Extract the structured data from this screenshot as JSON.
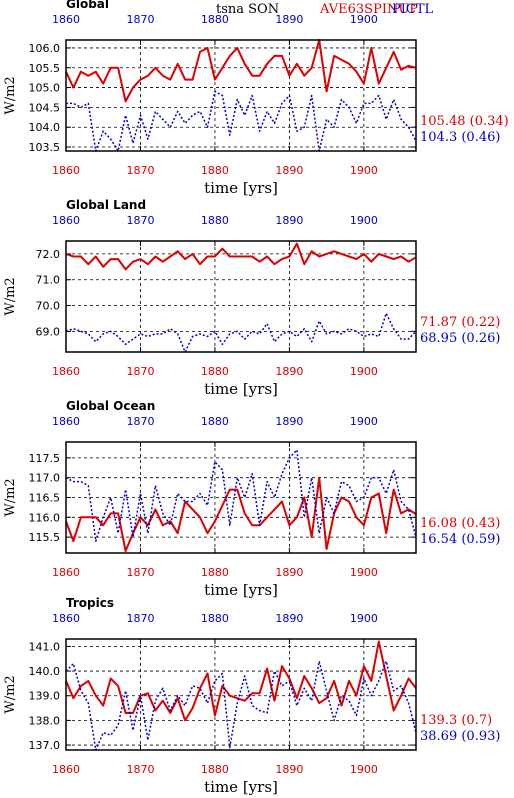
{
  "header": {
    "variable": "tsna SON",
    "run_a": "AVE63SPINUP",
    "run_b": "PICTL",
    "color_a": "#dd0000",
    "color_b": "#0000cc"
  },
  "chart_data": [
    {
      "type": "line",
      "title": "Global",
      "xlabel": "time [yrs]",
      "ylabel": "W/m2",
      "xlim": [
        1860,
        1907
      ],
      "ylim": [
        103.4,
        106.2
      ],
      "xticks": [
        1860,
        1870,
        1880,
        1890,
        1900
      ],
      "yticks": [
        "103.5",
        "104.0",
        "104.5",
        "105.0",
        "105.5",
        "106.0"
      ],
      "x_start": 1860,
      "series": [
        {
          "name": "AVE63SPINUP",
          "color": "#dd0000",
          "dash": "solid",
          "label": "105.48 (0.34)",
          "values": [
            105.4,
            105.0,
            105.4,
            105.3,
            105.4,
            105.1,
            105.5,
            105.5,
            104.65,
            105.0,
            105.2,
            105.3,
            105.5,
            105.3,
            105.2,
            105.6,
            105.2,
            105.2,
            105.9,
            106.0,
            105.2,
            105.5,
            105.8,
            106.0,
            105.6,
            105.3,
            105.3,
            105.6,
            105.8,
            105.8,
            105.3,
            105.6,
            105.3,
            105.5,
            106.2,
            104.9,
            105.8,
            105.7,
            105.6,
            105.4,
            105.1,
            106.0,
            105.1,
            105.5,
            105.9,
            105.45,
            105.55,
            105.5
          ]
        },
        {
          "name": "PICTL",
          "color": "#0000cc",
          "dash": "dotted",
          "label": "104.3 (0.46)",
          "values": [
            104.6,
            104.6,
            104.5,
            104.6,
            103.4,
            103.9,
            103.7,
            103.4,
            104.3,
            103.6,
            104.3,
            103.7,
            104.4,
            104.2,
            104.0,
            104.4,
            104.1,
            104.3,
            104.4,
            104.0,
            104.9,
            104.8,
            103.8,
            104.7,
            104.3,
            104.8,
            103.9,
            104.4,
            104.1,
            104.6,
            104.8,
            103.9,
            104.0,
            104.8,
            103.4,
            104.2,
            104.0,
            104.7,
            104.5,
            104.1,
            104.6,
            104.6,
            104.8,
            104.2,
            104.7,
            104.2,
            104.0,
            103.65
          ]
        }
      ]
    },
    {
      "type": "line",
      "title": "Global Land",
      "xlabel": "time [yrs]",
      "ylabel": "W/m2",
      "xlim": [
        1860,
        1907
      ],
      "ylim": [
        68.2,
        72.5
      ],
      "xticks": [
        1860,
        1870,
        1880,
        1890,
        1900
      ],
      "yticks": [
        "69.0",
        "70.0",
        "71.0",
        "72.0"
      ],
      "x_start": 1860,
      "series": [
        {
          "name": "AVE63SPINUP",
          "color": "#dd0000",
          "dash": "solid",
          "label": "71.87 (0.22)",
          "values": [
            72.0,
            71.9,
            71.9,
            71.6,
            71.9,
            71.5,
            71.8,
            71.8,
            71.4,
            71.7,
            71.8,
            71.6,
            71.9,
            71.7,
            71.9,
            72.1,
            71.8,
            72.0,
            71.6,
            71.9,
            71.9,
            72.2,
            71.9,
            71.9,
            71.9,
            71.9,
            71.7,
            71.9,
            71.6,
            71.8,
            71.9,
            72.4,
            71.6,
            72.1,
            71.9,
            72.0,
            72.1,
            72.0,
            71.9,
            71.8,
            72.0,
            71.7,
            72.0,
            71.9,
            71.8,
            71.9,
            71.7,
            71.87
          ]
        },
        {
          "name": "PICTL",
          "color": "#0000cc",
          "dash": "dotted",
          "label": "68.95 (0.26)",
          "values": [
            69.0,
            69.1,
            69.0,
            68.9,
            68.6,
            68.9,
            69.0,
            68.8,
            68.5,
            68.7,
            68.9,
            68.8,
            68.9,
            68.9,
            69.1,
            68.9,
            68.2,
            68.8,
            68.9,
            68.8,
            69.0,
            68.5,
            68.9,
            69.0,
            68.7,
            69.0,
            68.9,
            69.3,
            68.6,
            68.9,
            69.0,
            68.8,
            69.1,
            68.6,
            69.4,
            68.9,
            69.0,
            68.9,
            69.1,
            69.0,
            68.8,
            68.9,
            68.8,
            69.7,
            69.1,
            68.7,
            68.7,
            69.0
          ]
        }
      ]
    },
    {
      "type": "line",
      "title": "Global Ocean",
      "xlabel": "time [yrs]",
      "ylabel": "W/m2",
      "xlim": [
        1860,
        1907
      ],
      "ylim": [
        115.1,
        117.9
      ],
      "xticks": [
        1860,
        1870,
        1880,
        1890,
        1900
      ],
      "yticks": [
        "115.5",
        "116.0",
        "116.5",
        "117.0",
        "117.5"
      ],
      "x_start": 1860,
      "series": [
        {
          "name": "AVE63SPINUP",
          "color": "#dd0000",
          "dash": "solid",
          "label": "16.08 (0.43)",
          "values": [
            115.9,
            115.4,
            116.0,
            116.0,
            116.0,
            115.8,
            116.1,
            116.1,
            115.15,
            115.6,
            116.0,
            115.8,
            116.2,
            115.8,
            115.9,
            115.6,
            116.4,
            116.2,
            116.0,
            115.6,
            115.9,
            116.3,
            116.7,
            116.7,
            116.1,
            115.8,
            115.8,
            116.0,
            116.2,
            116.4,
            115.8,
            116.0,
            116.5,
            115.5,
            117.0,
            115.2,
            116.1,
            116.5,
            116.4,
            116.0,
            115.8,
            116.5,
            116.6,
            115.6,
            116.7,
            116.1,
            116.2,
            116.08
          ]
        },
        {
          "name": "PICTL",
          "color": "#0000cc",
          "dash": "dotted",
          "label": "16.54 (0.59)",
          "values": [
            117.0,
            116.9,
            116.9,
            116.8,
            115.4,
            116.0,
            116.5,
            115.6,
            116.7,
            115.5,
            116.6,
            115.6,
            116.8,
            116.1,
            115.8,
            116.6,
            116.4,
            116.4,
            116.6,
            116.3,
            117.4,
            117.2,
            115.8,
            117.0,
            116.5,
            117.1,
            115.8,
            116.9,
            116.5,
            117.1,
            117.5,
            117.7,
            116.0,
            117.0,
            115.6,
            116.5,
            116.1,
            116.9,
            116.8,
            116.4,
            116.5,
            117.0,
            117.0,
            116.6,
            117.2,
            116.4,
            116.2,
            115.5
          ]
        }
      ]
    },
    {
      "type": "line",
      "title": "Tropics",
      "xlabel": "time [yrs]",
      "ylabel": "W/m2",
      "xlim": [
        1860,
        1907
      ],
      "ylim": [
        136.8,
        141.3
      ],
      "xticks": [
        1860,
        1870,
        1880,
        1890,
        1900
      ],
      "yticks": [
        "137.0",
        "138.0",
        "139.0",
        "140.0",
        "141.0"
      ],
      "x_start": 1860,
      "series": [
        {
          "name": "AVE63SPINUP",
          "color": "#dd0000",
          "dash": "solid",
          "label": "139.3 (0.7)",
          "values": [
            139.6,
            138.9,
            139.4,
            139.6,
            139.0,
            138.6,
            139.7,
            139.4,
            138.3,
            138.3,
            139.0,
            139.1,
            138.4,
            138.8,
            138.3,
            138.9,
            138.0,
            138.5,
            139.3,
            139.9,
            138.2,
            139.4,
            139.0,
            138.9,
            138.8,
            139.1,
            139.1,
            140.1,
            138.8,
            140.2,
            139.7,
            138.9,
            139.8,
            139.3,
            138.7,
            138.9,
            139.6,
            138.6,
            139.6,
            139.0,
            140.2,
            139.6,
            141.2,
            139.8,
            138.4,
            139.0,
            139.7,
            139.3
          ]
        },
        {
          "name": "PICTL",
          "color": "#0000cc",
          "dash": "dotted",
          "label": "38.69 (0.93)",
          "values": [
            140.0,
            140.3,
            139.2,
            138.7,
            136.8,
            137.5,
            137.4,
            137.8,
            139.2,
            137.6,
            139.0,
            137.2,
            138.8,
            139.3,
            138.4,
            139.0,
            138.6,
            139.4,
            139.3,
            138.7,
            139.6,
            139.9,
            136.9,
            138.7,
            139.8,
            138.6,
            138.4,
            138.3,
            140.0,
            139.4,
            139.6,
            138.6,
            139.3,
            138.8,
            140.4,
            139.2,
            138.0,
            139.0,
            138.8,
            138.2,
            139.7,
            139.0,
            139.6,
            140.4,
            139.2,
            139.4,
            138.7,
            137.5
          ]
        }
      ]
    }
  ]
}
